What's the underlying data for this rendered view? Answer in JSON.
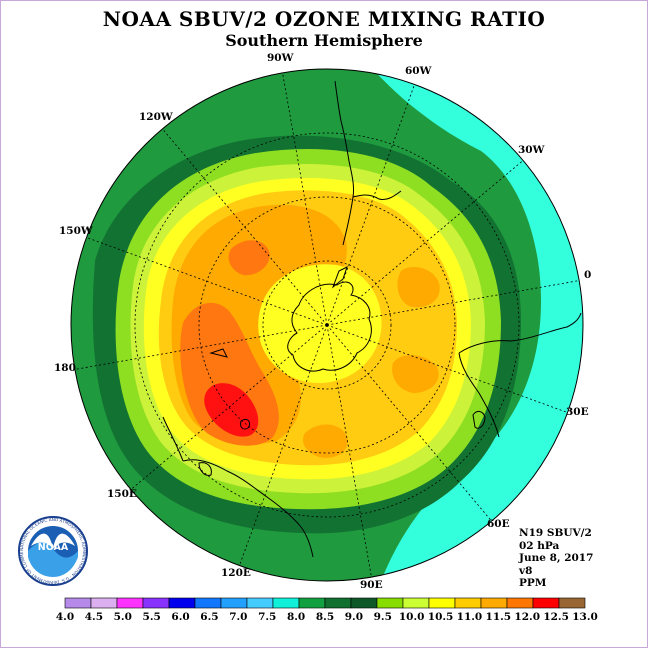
{
  "title": "NOAA SBUV/2 OZONE MIXING RATIO",
  "subtitle": "Southern Hemisphere",
  "longitude_labels": [
    "90W",
    "60W",
    "30W",
    "0",
    "30E",
    "60E",
    "90E",
    "120E",
    "150E",
    "180",
    "150W",
    "120W"
  ],
  "info": {
    "satellite": "N19 SBUV/2",
    "level": "02 hPa",
    "date": "June 8, 2017",
    "version": "v8",
    "units": "PPM"
  },
  "logo_text": "NOAA",
  "logo_ring_text": "NATIONAL OCEANIC AND ATMOSPHERIC ADMINISTRATION · U.S. DEPARTMENT OF COMMERCE",
  "colorbar": {
    "ticks": [
      "4.0",
      "4.5",
      "5.0",
      "5.5",
      "6.0",
      "6.5",
      "7.0",
      "7.5",
      "8.0",
      "8.5",
      "9.0",
      "9.5",
      "10.0",
      "10.5",
      "11.0",
      "11.5",
      "12.0",
      "12.5",
      "13.0"
    ],
    "colors": [
      "#b58ae8",
      "#dcb0f0",
      "#ff33ff",
      "#8833ff",
      "#0000ee",
      "#1177ff",
      "#22a0ff",
      "#44ccff",
      "#11f0d8",
      "#11a040",
      "#107030",
      "#0e5828",
      "#88dd00",
      "#ccff33",
      "#ffff00",
      "#ffcc00",
      "#ffaa00",
      "#ff7700",
      "#ff0000",
      "#996633"
    ]
  },
  "colors": {
    "level_8_0": "#33ffdd",
    "level_8_5": "#1f9a3e",
    "level_9_0": "#127232",
    "level_9_5": "#8ede22",
    "level_10_0": "#ccf23a",
    "level_10_5": "#ffff22",
    "level_11_0": "#ffcc11",
    "level_11_5": "#ffaa00",
    "level_12_0": "#ff7711",
    "level_12_5": "#ff1111"
  }
}
